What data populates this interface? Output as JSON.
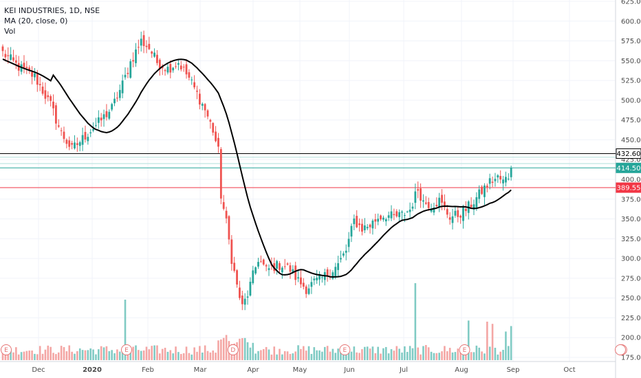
{
  "legend": {
    "symbol": "KEI INDUSTRIES, 1D, NSE",
    "ma": "MA (20, close, 0)",
    "vol": "Vol"
  },
  "colors": {
    "up": "#26a69a",
    "down": "#ef5350",
    "up_vol": "#80cbc4",
    "down_vol": "#f4a6a4",
    "ma": "#000000",
    "h_black": "#000000",
    "h_red": "#f23645",
    "h_teal": "#26a69a",
    "grid": "#f0f3fa",
    "event": "#e57373"
  },
  "chart_data": {
    "type": "candlestick",
    "yticks": [
      175,
      200,
      225,
      250,
      275,
      300,
      325,
      350,
      375,
      400,
      425,
      450,
      475,
      500,
      525,
      550,
      575,
      600,
      625
    ],
    "ylim": [
      170,
      630
    ],
    "xtick_labels": [
      "Dec",
      "2020",
      "Feb",
      "Mar",
      "Apr",
      "May",
      "Jun",
      "Jul",
      "Aug",
      "Sep",
      "Oct"
    ],
    "xtick_bold": [
      "2020"
    ],
    "horizontal_lines": [
      {
        "value": 432.6,
        "label": "432.60",
        "color": "#000000"
      },
      {
        "value": 414.5,
        "label": "414.50",
        "color": "#26a69a"
      },
      {
        "value": 389.55,
        "label": "389.55",
        "color": "#f23645"
      }
    ],
    "extra_lines": [
      428,
      420
    ],
    "events": [
      {
        "bar": 0,
        "label": "E"
      },
      {
        "bar": 46,
        "label": "E"
      },
      {
        "bar": 86,
        "label": "D"
      },
      {
        "bar": 128,
        "label": "E"
      },
      {
        "bar": 173,
        "label": "E"
      },
      {
        "bar": 232,
        "label": "E"
      }
    ],
    "close_anchors": [
      [
        0,
        560
      ],
      [
        6,
        542
      ],
      [
        12,
        530
      ],
      [
        18,
        494
      ],
      [
        22,
        458
      ],
      [
        26,
        438
      ],
      [
        29,
        448
      ],
      [
        33,
        462
      ],
      [
        37,
        475
      ],
      [
        41,
        490
      ],
      [
        45,
        520
      ],
      [
        48,
        548
      ],
      [
        52,
        575
      ],
      [
        55,
        566
      ],
      [
        58,
        548
      ],
      [
        62,
        540
      ],
      [
        66,
        548
      ],
      [
        70,
        528
      ],
      [
        73,
        508
      ],
      [
        76,
        488
      ],
      [
        79,
        462
      ],
      [
        81,
        435
      ],
      [
        82,
        380
      ],
      [
        84,
        345
      ],
      [
        86,
        300
      ],
      [
        88,
        265
      ],
      [
        90,
        238
      ],
      [
        92,
        255
      ],
      [
        94,
        278
      ],
      [
        96,
        300
      ],
      [
        99,
        285
      ],
      [
        102,
        290
      ],
      [
        105,
        292
      ],
      [
        108,
        286
      ],
      [
        111,
        272
      ],
      [
        114,
        262
      ],
      [
        117,
        270
      ],
      [
        120,
        275
      ],
      [
        123,
        283
      ],
      [
        126,
        292
      ],
      [
        129,
        310
      ],
      [
        132,
        348
      ],
      [
        135,
        338
      ],
      [
        138,
        342
      ],
      [
        141,
        352
      ],
      [
        144,
        355
      ],
      [
        147,
        352
      ],
      [
        150,
        355
      ],
      [
        153,
        362
      ],
      [
        156,
        388
      ],
      [
        158,
        372
      ],
      [
        161,
        368
      ],
      [
        164,
        373
      ],
      [
        166,
        362
      ],
      [
        168,
        353
      ],
      [
        171,
        355
      ],
      [
        174,
        362
      ],
      [
        177,
        372
      ],
      [
        180,
        385
      ],
      [
        183,
        397
      ],
      [
        186,
        402
      ],
      [
        188,
        397
      ],
      [
        190,
        404
      ],
      [
        191,
        414
      ]
    ],
    "n_bars": 192,
    "volume_spikes": [
      {
        "bar": 46,
        "scale": 5.5
      },
      {
        "bar": 155,
        "scale": 7.0
      },
      {
        "bar": 175,
        "scale": 3.6
      },
      {
        "bar": 182,
        "scale": 3.5
      },
      {
        "bar": 184,
        "scale": 3.3
      },
      {
        "bar": 189,
        "scale": 2.6
      },
      {
        "bar": 191,
        "scale": 3.1
      }
    ]
  }
}
